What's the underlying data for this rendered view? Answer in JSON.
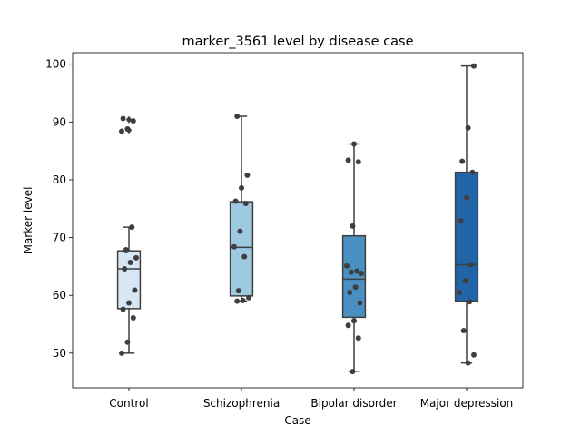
{
  "chart_data": {
    "type": "box",
    "title": "marker_3561 level by disease case",
    "xlabel": "Case",
    "ylabel": "Marker level",
    "ylim": [
      44,
      102
    ],
    "yticks": [
      50,
      60,
      70,
      80,
      90,
      100
    ],
    "grid": false,
    "categories": [
      {
        "label": "Control",
        "color": "#d6e6f4",
        "q1": 57.7,
        "median": 64.6,
        "q3": 67.7,
        "whisker_low": 50.0,
        "whisker_high": 71.8,
        "outliers": [
          88.6,
          90.4
        ],
        "points": [
          50.0,
          51.9,
          56.1,
          57.6,
          58.7,
          60.9,
          64.6,
          65.7,
          66.5,
          67.9,
          71.8,
          88.4,
          88.8,
          90.2,
          90.6
        ]
      },
      {
        "label": "Schizophrenia",
        "color": "#9ecae1",
        "q1": 59.9,
        "median": 68.3,
        "q3": 76.2,
        "whisker_low": 59.0,
        "whisker_high": 91.0,
        "outliers": [],
        "points": [
          59.0,
          59.1,
          59.6,
          60.8,
          66.7,
          68.4,
          71.1,
          75.9,
          76.3,
          78.6,
          80.8,
          91.0
        ]
      },
      {
        "label": "Bipolar disorder",
        "color": "#4a90c2",
        "q1": 56.2,
        "median": 62.8,
        "q3": 70.3,
        "whisker_low": 46.8,
        "whisker_high": 86.2,
        "outliers": [],
        "points": [
          46.8,
          52.6,
          54.8,
          55.6,
          58.7,
          60.5,
          61.4,
          63.8,
          64.0,
          64.2,
          65.1,
          72.0,
          83.1,
          83.4,
          86.2
        ]
      },
      {
        "label": "Major depression",
        "color": "#2164a8",
        "q1": 59.0,
        "median": 65.3,
        "q3": 81.3,
        "whisker_low": 48.3,
        "whisker_high": 99.7,
        "outliers": [],
        "points": [
          48.3,
          49.7,
          53.9,
          58.9,
          60.5,
          62.5,
          65.3,
          72.9,
          76.9,
          81.3,
          83.2,
          89.0,
          99.7
        ]
      }
    ]
  }
}
